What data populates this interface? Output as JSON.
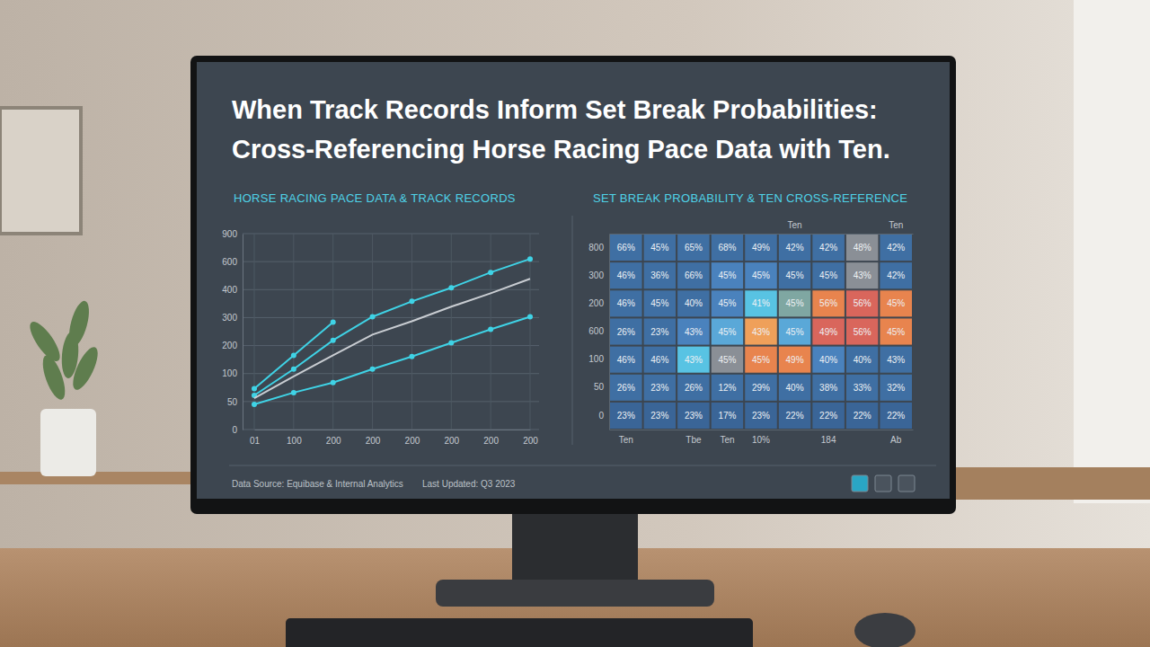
{
  "title": [
    "When Track Records Inform Set Break Probabilities:",
    "Cross-Referencing Horse Racing Pace Data with Ten."
  ],
  "chart_data": [
    {
      "type": "line",
      "title": "HORSE RACING PACE DATA & TRACK RECORDS",
      "categories": [
        "01",
        "100",
        "200",
        "200",
        "200",
        "200",
        "200",
        "200"
      ],
      "series": [
        {
          "color": "#3fd3e6",
          "marker": "circle",
          "values": [
            73,
            165,
            284,
            null,
            null,
            null,
            null,
            null
          ]
        },
        {
          "color": "#3fd3e6",
          "marker": "circle",
          "values": [
            61,
            116,
            219,
            303,
            358,
            413,
            523,
            629
          ]
        },
        {
          "color": "#c9cdd2",
          "values": [
            56,
            95,
            165,
            239,
            287,
            339,
            387,
            477
          ]
        },
        {
          "color": "#3fd3e6",
          "marker": "circle",
          "values": [
            45,
            66,
            84,
            116,
            161,
            210,
            258,
            303
          ]
        }
      ],
      "ylim": [
        0,
        900
      ],
      "yticks": [
        0,
        50,
        100,
        200,
        300,
        400,
        600,
        900
      ],
      "grid": true
    },
    {
      "type": "heatmap",
      "title": "SET BREAK PROBABILITY & TEN CROSS-REFERENCE",
      "categories": [
        "Ten",
        null,
        "Tbe",
        "Ten",
        "10%",
        null,
        "184",
        null,
        "Ab"
      ],
      "x2_categories": [
        null,
        null,
        null,
        null,
        null,
        "Ten",
        null,
        null,
        "Ten"
      ],
      "rows": [
        "800",
        "300",
        "200",
        "600",
        "100",
        "50",
        "0"
      ],
      "values": [
        [
          66,
          45,
          65,
          68,
          49,
          42,
          42,
          48,
          42
        ],
        [
          46,
          36,
          66,
          45,
          45,
          45,
          45,
          43,
          42
        ],
        [
          46,
          45,
          40,
          45,
          41,
          45,
          56,
          56,
          45
        ],
        [
          26,
          23,
          43,
          45,
          43,
          45,
          49,
          56,
          45
        ],
        [
          46,
          46,
          43,
          45,
          45,
          49,
          40,
          40,
          43
        ],
        [
          26,
          23,
          26,
          12,
          29,
          40,
          38,
          33,
          32
        ],
        [
          23,
          23,
          23,
          17,
          23,
          22,
          22,
          22,
          22
        ]
      ],
      "value_labels": [
        [
          "66%",
          "45%",
          "65%",
          "68%",
          "49%",
          "42%",
          "42%",
          "48%",
          "42%"
        ],
        [
          "46%",
          "36%",
          "66%",
          "45%",
          "45%",
          "45%",
          "45%",
          "43%",
          "42%"
        ],
        [
          "46%",
          "45%",
          "40%",
          "45%",
          "41%",
          "45%",
          "56%",
          "56%",
          "45%"
        ],
        [
          "26%",
          "23%",
          "43%",
          "45%",
          "43%",
          "45%",
          "49%",
          "56%",
          "45%"
        ],
        [
          "46%",
          "46%",
          "43%",
          "45%",
          "45%",
          "49%",
          "40%",
          "40%",
          "43%"
        ],
        [
          "26%",
          "23%",
          "26%",
          "12%",
          "29%",
          "40%",
          "38%",
          "33%",
          "32%"
        ],
        [
          "23%",
          "23%",
          "23%",
          "17%",
          "23%",
          "22%",
          "22%",
          "22%",
          "22%"
        ]
      ],
      "colors": [
        [
          "#3f6fa3",
          "#3f6fa3",
          "#3f6fa3",
          "#3f6fa3",
          "#3f6fa3",
          "#3f6fa3",
          "#3f6fa3",
          "#8a8f96",
          "#3f6fa3"
        ],
        [
          "#3f6fa3",
          "#3f6fa3",
          "#3f6fa3",
          "#4a82bd",
          "#4a82bd",
          "#3f6fa3",
          "#3f6fa3",
          "#8a8f96",
          "#3f6fa3"
        ],
        [
          "#3f6fa3",
          "#3f6fa3",
          "#3f6fa3",
          "#4a82bd",
          "#58c3e3",
          "#7fa7a2",
          "#e8844e",
          "#d9665c",
          "#e8844e"
        ],
        [
          "#3f6fa3",
          "#3f6fa3",
          "#4a82bd",
          "#5aa8d8",
          "#efa05a",
          "#5aa8d8",
          "#d9665c",
          "#d9665c",
          "#e8844e"
        ],
        [
          "#3f6fa3",
          "#3f6fa3",
          "#58c3e3",
          "#8a8f96",
          "#e8844e",
          "#e8844e",
          "#4a82bd",
          "#3f6fa3",
          "#3f6fa3"
        ],
        [
          "#3f6fa3",
          "#3f6fa3",
          "#3f6fa3",
          "#3f6fa3",
          "#3f6fa3",
          "#3f6fa3",
          "#3f6fa3",
          "#3f6fa3",
          "#3f6fa3"
        ],
        [
          "#3a6597",
          "#3a6597",
          "#3a6597",
          "#3a6597",
          "#3a6597",
          "#3a6597",
          "#3a6597",
          "#3a6597",
          "#3a6597"
        ]
      ],
      "data_labels": true
    }
  ],
  "footer": {
    "source": "Data Source: Equibase & Internal Analytics",
    "updated": "Last Updated: Q3 2023"
  }
}
